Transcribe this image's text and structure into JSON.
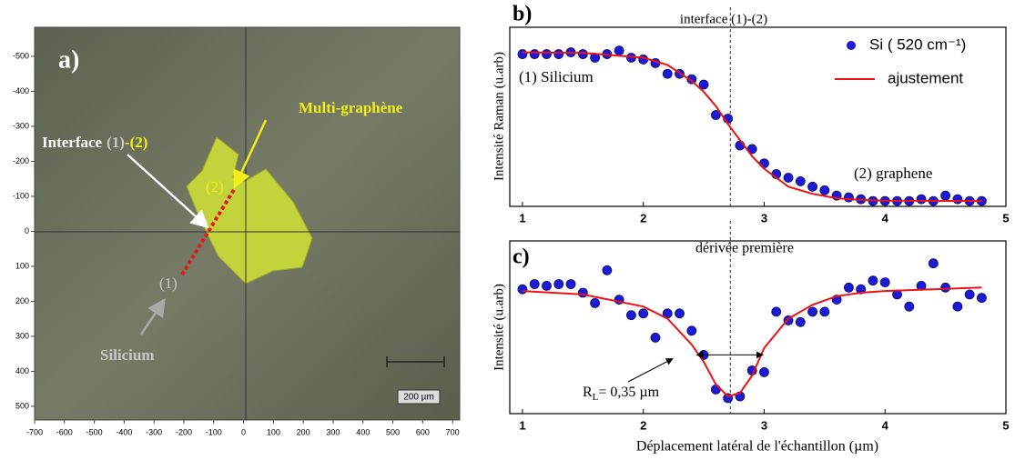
{
  "chart_data": [
    {
      "type": "image",
      "title": "a)",
      "xlim": [
        -700,
        724
      ],
      "ylim": [
        -583,
        539
      ],
      "y_inverted": true,
      "xticks": [
        -700,
        -600,
        -500,
        -400,
        -300,
        -200,
        -100,
        0,
        100,
        200,
        300,
        400,
        500,
        600,
        700
      ],
      "yticks": [
        -500,
        -400,
        -300,
        -200,
        -100,
        0,
        100,
        200,
        300,
        400,
        500
      ],
      "annotations": {
        "multi": "Multi-graphène",
        "interface": "Interface",
        "interface_part1": "(1)",
        "interface_part2": "-(2)",
        "region2": "(2)",
        "region1": "(1)",
        "silicium": "Silicium"
      },
      "scale_bar_label": "200 µm"
    },
    {
      "type": "scatter_fit",
      "title": "b)",
      "ylabel": "Intensité Raman (u.arb)",
      "xlim": [
        0.895,
        5
      ],
      "xticks": [
        1,
        2,
        3,
        4,
        5
      ],
      "ylim": [
        0,
        1
      ],
      "interface_x": 2.72,
      "legend": "upper right",
      "annotations": {
        "interface": "interface (1)-(2)",
        "silicium": "(1) Silicium",
        "graphene": "(2) graphene"
      },
      "series": [
        {
          "name": "Si ( 520 cm⁻¹)",
          "color": "#1a1ad8",
          "kind": "marker",
          "x": [
            1.0,
            1.1,
            1.2,
            1.3,
            1.4,
            1.5,
            1.6,
            1.7,
            1.8,
            1.9,
            2.0,
            2.1,
            2.2,
            2.3,
            2.4,
            2.5,
            2.6,
            2.7,
            2.8,
            2.9,
            3.0,
            3.1,
            3.2,
            3.3,
            3.4,
            3.5,
            3.6,
            3.7,
            3.8,
            3.9,
            4.0,
            4.1,
            4.2,
            4.3,
            4.4,
            4.5,
            4.6,
            4.7,
            4.8
          ],
          "values": [
            0.85,
            0.85,
            0.85,
            0.85,
            0.86,
            0.85,
            0.83,
            0.85,
            0.87,
            0.83,
            0.82,
            0.8,
            0.74,
            0.74,
            0.71,
            0.68,
            0.51,
            0.49,
            0.34,
            0.32,
            0.24,
            0.18,
            0.16,
            0.14,
            0.11,
            0.09,
            0.06,
            0.05,
            0.04,
            0.03,
            0.03,
            0.03,
            0.03,
            0.04,
            0.03,
            0.06,
            0.04,
            0.03,
            0.03
          ]
        },
        {
          "name": "ajustement",
          "color": "#ee1111",
          "kind": "line",
          "x": [
            1.0,
            1.5,
            2.0,
            2.2,
            2.4,
            2.5,
            2.6,
            2.7,
            2.8,
            2.9,
            3.0,
            3.2,
            3.4,
            3.6,
            3.8,
            4.0,
            4.8
          ],
          "values": [
            0.86,
            0.857,
            0.83,
            0.79,
            0.7,
            0.64,
            0.56,
            0.46,
            0.37,
            0.28,
            0.21,
            0.11,
            0.07,
            0.045,
            0.036,
            0.032,
            0.03
          ]
        }
      ]
    },
    {
      "type": "scatter_fit",
      "title": "c)",
      "ylabel": "Intensité  (u.arb)",
      "xlabel": "Déplacement latéral de l'échantillon (µm)",
      "xlim": [
        0.895,
        5
      ],
      "xticks": [
        1,
        2,
        3,
        4,
        5
      ],
      "ylim": [
        0,
        1
      ],
      "interface_x": 2.72,
      "annotations": {
        "derivee": "dérivée première"
      },
      "width_label": {
        "main": "R",
        "sub": "L",
        "rest": "= 0,35 µm"
      },
      "width_arrow": {
        "x": [
          2.45,
          2.98
        ],
        "y": 0.34
      },
      "series": [
        {
          "color": "#1a1ad8",
          "kind": "marker",
          "x": [
            1.0,
            1.1,
            1.2,
            1.3,
            1.4,
            1.5,
            1.6,
            1.7,
            1.8,
            1.9,
            2.0,
            2.1,
            2.2,
            2.3,
            2.4,
            2.5,
            2.6,
            2.7,
            2.8,
            2.9,
            3.0,
            3.1,
            3.2,
            3.3,
            3.4,
            3.5,
            3.6,
            3.7,
            3.8,
            3.9,
            4.0,
            4.1,
            4.2,
            4.3,
            4.4,
            4.5,
            4.6,
            4.7,
            4.8
          ],
          "values": [
            0.72,
            0.75,
            0.74,
            0.75,
            0.75,
            0.7,
            0.64,
            0.83,
            0.66,
            0.57,
            0.58,
            0.44,
            0.58,
            0.58,
            0.48,
            0.34,
            0.14,
            0.09,
            0.1,
            0.25,
            0.24,
            0.59,
            0.54,
            0.53,
            0.59,
            0.59,
            0.66,
            0.73,
            0.72,
            0.77,
            0.76,
            0.69,
            0.62,
            0.74,
            0.87,
            0.73,
            0.62,
            0.69,
            0.67
          ]
        },
        {
          "color": "#ee1111",
          "kind": "line",
          "x": [
            1.0,
            1.5,
            2.0,
            2.2,
            2.4,
            2.5,
            2.6,
            2.7,
            2.8,
            2.9,
            3.0,
            3.2,
            3.4,
            3.6,
            3.8,
            4.0,
            4.4,
            4.8
          ],
          "values": [
            0.71,
            0.69,
            0.62,
            0.55,
            0.4,
            0.3,
            0.17,
            0.1,
            0.12,
            0.22,
            0.38,
            0.55,
            0.63,
            0.68,
            0.7,
            0.71,
            0.72,
            0.73
          ]
        }
      ]
    }
  ]
}
